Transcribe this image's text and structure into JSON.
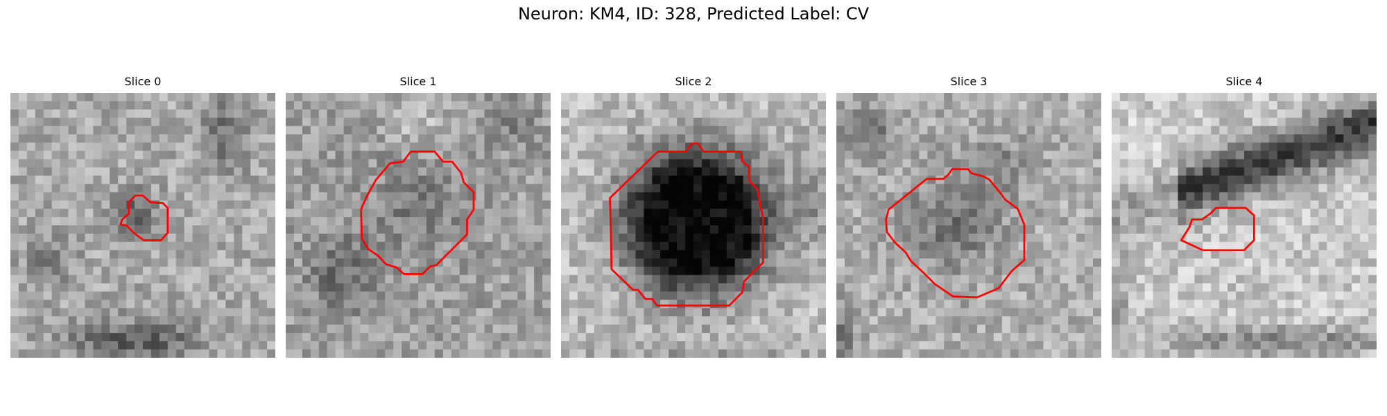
{
  "figure": {
    "title": "Neuron: KM4, ID: 328, Predicted Label: CV"
  },
  "panels": [
    {
      "label": "Slice 0"
    },
    {
      "label": "Slice 1"
    },
    {
      "label": "Slice 2"
    },
    {
      "label": "Slice 3"
    },
    {
      "label": "Slice 4"
    }
  ],
  "style": {
    "contour_color": "#ff0000",
    "colormap": "grayscale"
  }
}
